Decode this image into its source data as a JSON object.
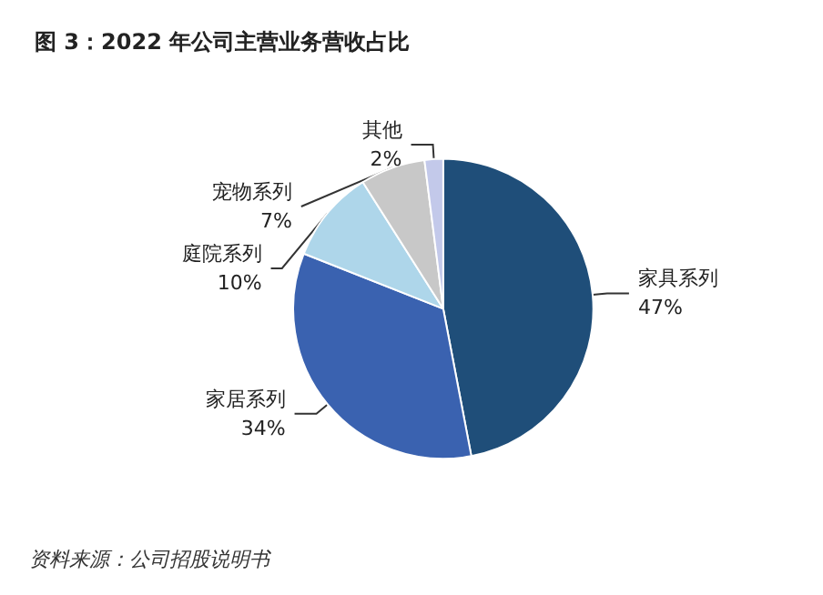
{
  "chart_data": {
    "type": "pie",
    "title": "图 3：2022 年公司主营业务营收占比",
    "categories": [
      "家具系列",
      "家居系列",
      "庭院系列",
      "宠物系列",
      "其他"
    ],
    "values": [
      47,
      34,
      10,
      7,
      2
    ],
    "value_labels": [
      "47%",
      "34%",
      "10%",
      "7%",
      "2%"
    ],
    "colors": [
      "#1f4e79",
      "#3a62b0",
      "#aed6ea",
      "#c8c8c8",
      "#c3c9ea"
    ],
    "annotations": [
      "资料来源：公司招股说明书"
    ]
  }
}
